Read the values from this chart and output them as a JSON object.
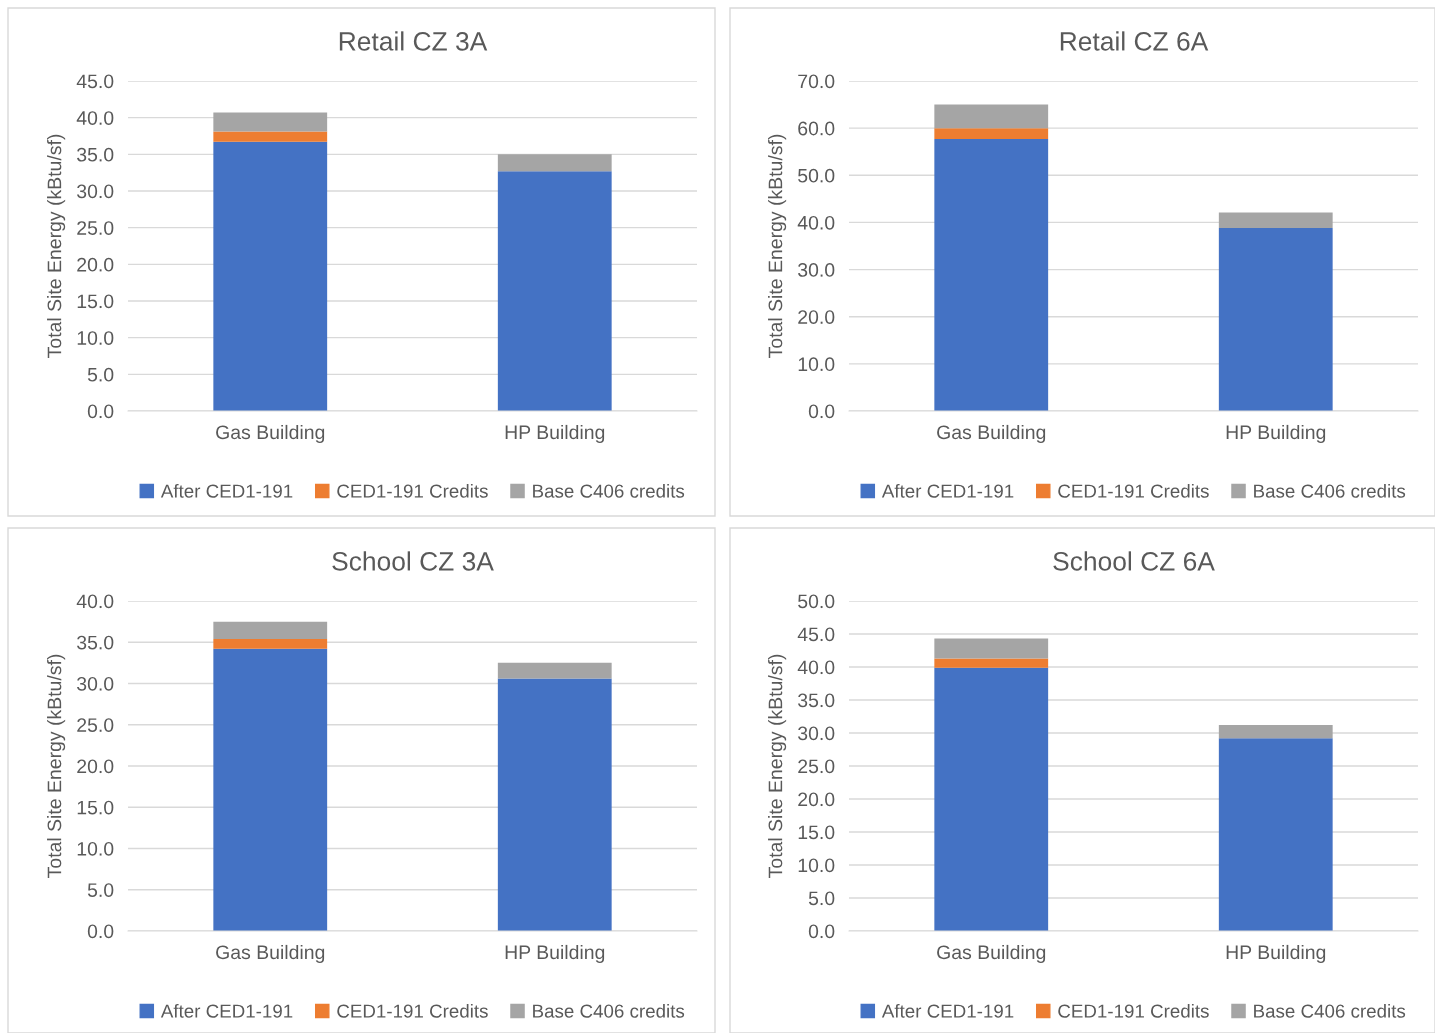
{
  "chart_data": [
    {
      "type": "bar",
      "title": "Retail CZ 3A",
      "ylabel": "Total Site Energy (kBtu/sf)",
      "categories": [
        "Gas Building",
        "HP Building"
      ],
      "stacked": true,
      "ylim": [
        0,
        45
      ],
      "yticks": [
        {
          "value": 0,
          "label": "0.0"
        },
        {
          "value": 5,
          "label": "5.0"
        },
        {
          "value": 10,
          "label": "10.0"
        },
        {
          "value": 15,
          "label": "15.0"
        },
        {
          "value": 20,
          "label": "20.0"
        },
        {
          "value": 25,
          "label": "25.0"
        },
        {
          "value": 30,
          "label": "30.0"
        },
        {
          "value": 35,
          "label": "35.0"
        },
        {
          "value": 40,
          "label": "40.0"
        },
        {
          "value": 45,
          "label": "45.0"
        }
      ],
      "grid": "y",
      "legend": "bottom",
      "series": [
        {
          "name": "After CED1-191",
          "color": "#4472c4",
          "values": [
            36.7,
            32.7
          ]
        },
        {
          "name": "CED1-191 Credits",
          "color": "#ed7d31",
          "values": [
            1.4,
            0
          ]
        },
        {
          "name": "Base C406 credits",
          "color": "#a5a5a5",
          "values": [
            2.6,
            2.3
          ]
        }
      ]
    },
    {
      "type": "bar",
      "title": "Retail CZ 6A",
      "ylabel": "Total Site Energy (kBtu/sf)",
      "categories": [
        "Gas Building",
        "HP Building"
      ],
      "stacked": true,
      "ylim": [
        0,
        70
      ],
      "yticks": [
        {
          "value": 0,
          "label": "0.0"
        },
        {
          "value": 10,
          "label": "10.0"
        },
        {
          "value": 20,
          "label": "20.0"
        },
        {
          "value": 30,
          "label": "30.0"
        },
        {
          "value": 40,
          "label": "40.0"
        },
        {
          "value": 50,
          "label": "50.0"
        },
        {
          "value": 60,
          "label": "60.0"
        },
        {
          "value": 70,
          "label": "70.0"
        }
      ],
      "grid": "y",
      "legend": "bottom",
      "series": [
        {
          "name": "After CED1-191",
          "color": "#4472c4",
          "values": [
            57.7,
            38.8
          ]
        },
        {
          "name": "CED1-191 Credits",
          "color": "#ed7d31",
          "values": [
            2.3,
            0
          ]
        },
        {
          "name": "Base C406 credits",
          "color": "#a5a5a5",
          "values": [
            5.0,
            3.3
          ]
        }
      ]
    },
    {
      "type": "bar",
      "title": "School CZ 3A",
      "ylabel": "Total Site Energy (kBtu/sf)",
      "categories": [
        "Gas Building",
        "HP Building"
      ],
      "stacked": true,
      "ylim": [
        0,
        40
      ],
      "yticks": [
        {
          "value": 0,
          "label": "0.0"
        },
        {
          "value": 5,
          "label": "5.0"
        },
        {
          "value": 10,
          "label": "10.0"
        },
        {
          "value": 15,
          "label": "15.0"
        },
        {
          "value": 20,
          "label": "20.0"
        },
        {
          "value": 25,
          "label": "25.0"
        },
        {
          "value": 30,
          "label": "30.0"
        },
        {
          "value": 35,
          "label": "35.0"
        },
        {
          "value": 40,
          "label": "40.0"
        }
      ],
      "grid": "y",
      "legend": "bottom",
      "series": [
        {
          "name": "After CED1-191",
          "color": "#4472c4",
          "values": [
            34.2,
            30.6
          ]
        },
        {
          "name": "CED1-191 Credits",
          "color": "#ed7d31",
          "values": [
            1.2,
            0
          ]
        },
        {
          "name": "Base C406 credits",
          "color": "#a5a5a5",
          "values": [
            2.1,
            1.9
          ]
        }
      ]
    },
    {
      "type": "bar",
      "title": "School CZ 6A",
      "ylabel": "Total Site Energy (kBtu/sf)",
      "categories": [
        "Gas Building",
        "HP Building"
      ],
      "stacked": true,
      "ylim": [
        0,
        50
      ],
      "yticks": [
        {
          "value": 0,
          "label": "0.0"
        },
        {
          "value": 5,
          "label": "5.0"
        },
        {
          "value": 10,
          "label": "10.0"
        },
        {
          "value": 15,
          "label": "15.0"
        },
        {
          "value": 20,
          "label": "20.0"
        },
        {
          "value": 25,
          "label": "25.0"
        },
        {
          "value": 30,
          "label": "30.0"
        },
        {
          "value": 35,
          "label": "35.0"
        },
        {
          "value": 40,
          "label": "40.0"
        },
        {
          "value": 45,
          "label": "45.0"
        },
        {
          "value": 50,
          "label": "50.0"
        }
      ],
      "grid": "y",
      "legend": "bottom",
      "series": [
        {
          "name": "After CED1-191",
          "color": "#4472c4",
          "values": [
            39.9,
            29.2
          ]
        },
        {
          "name": "CED1-191 Credits",
          "color": "#ed7d31",
          "values": [
            1.4,
            0
          ]
        },
        {
          "name": "Base C406 credits",
          "color": "#a5a5a5",
          "values": [
            3.0,
            2.0
          ]
        }
      ]
    }
  ]
}
